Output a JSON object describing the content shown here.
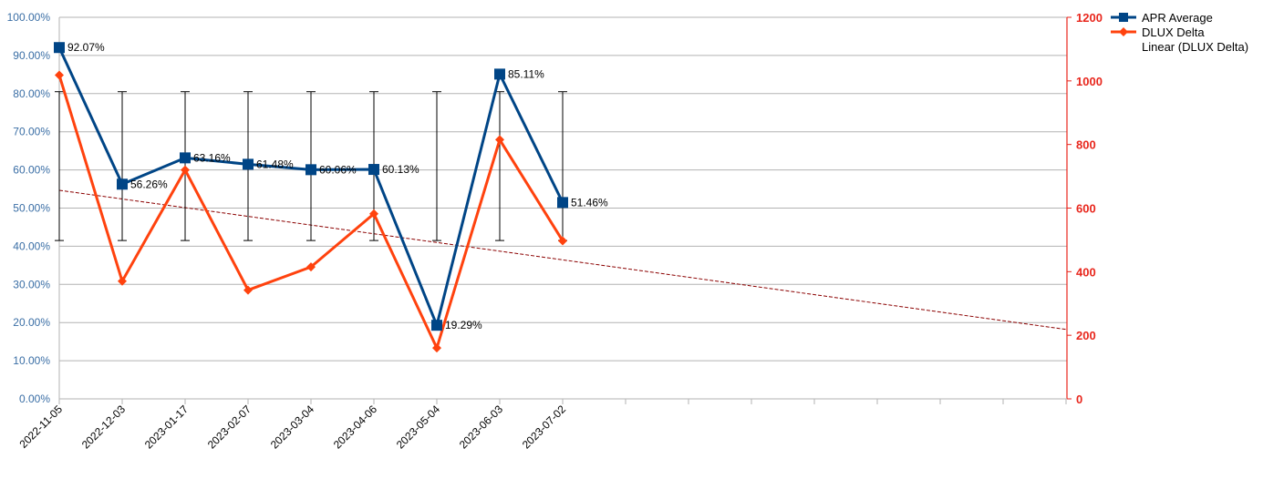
{
  "chart_data": {
    "type": "line",
    "categories": [
      "2022-11-05",
      "2022-12-03",
      "2023-01-17",
      "2023-02-07",
      "2023-03-04",
      "2023-04-06",
      "2023-05-04",
      "2023-06-03",
      "2023-07-02"
    ],
    "y_left": {
      "min": 0,
      "max": 100,
      "step": 10,
      "ticks": [
        "0.00%",
        "10.00%",
        "20.00%",
        "30.00%",
        "40.00%",
        "50.00%",
        "60.00%",
        "70.00%",
        "80.00%",
        "90.00%",
        "100.00%"
      ]
    },
    "y_right": {
      "min": 0,
      "max": 1200,
      "step": 200,
      "ticks": [
        "0",
        "200",
        "400",
        "600",
        "800",
        "1000",
        "1200"
      ]
    },
    "series": [
      {
        "name": "APR Average",
        "axis": "left",
        "color": "#004586",
        "marker": "square",
        "values": [
          92.07,
          56.26,
          63.16,
          61.48,
          60.06,
          60.13,
          19.29,
          85.11,
          51.46
        ],
        "labels": [
          "92.07%",
          "56.26%",
          "63.16%",
          "61.48%",
          "60.06%",
          "60.13%",
          "19.29%",
          "85.11%",
          "51.46%"
        ],
        "error_bars": {
          "low": 41.5,
          "high": 80.5
        }
      },
      {
        "name": "DLUX Delta",
        "axis": "right",
        "color": "#ff420e",
        "marker": "diamond",
        "values": [
          1018,
          370,
          720,
          342,
          415,
          582,
          160,
          815,
          497
        ]
      }
    ],
    "trendline": {
      "name": "Linear (DLUX Delta)",
      "axis": "right",
      "color": "#8b0000",
      "start": 656,
      "end": 218
    },
    "legend": {
      "position": "top-right"
    },
    "grid": true
  }
}
